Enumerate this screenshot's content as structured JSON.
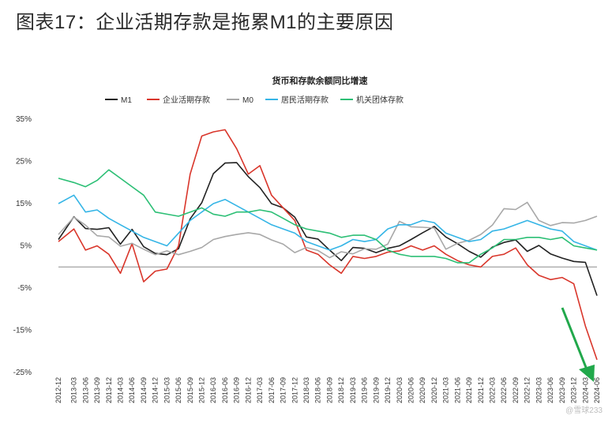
{
  "heading": "图表17：企业活期存款是拖累M1的主要原因",
  "watermark": "@雪球233",
  "chart_data": {
    "type": "line",
    "title": "货币和存款余额同比增速",
    "ylim": [
      -25,
      35
    ],
    "yticks": [
      35,
      25,
      15,
      5,
      -5,
      -15,
      -25
    ],
    "ytick_labels": [
      "35%",
      "25%",
      "15%",
      "5%",
      "-5%",
      "-15%",
      "-25%"
    ],
    "legend_position": "top",
    "xticks": [
      "2012-12",
      "2013-03",
      "2013-06",
      "2013-09",
      "2013-12",
      "2014-03",
      "2014-06",
      "2014-09",
      "2014-12",
      "2015-03",
      "2015-06",
      "2015-09",
      "2015-12",
      "2016-03",
      "2016-06",
      "2016-09",
      "2016-12",
      "2017-03",
      "2017-06",
      "2017-09",
      "2017-12",
      "2018-03",
      "2018-06",
      "2018-09",
      "2018-12",
      "2019-03",
      "2019-06",
      "2019-09",
      "2019-12",
      "2020-03",
      "2020-06",
      "2020-09",
      "2020-12",
      "2021-03",
      "2021-06",
      "2021-09",
      "2021-12",
      "2022-03",
      "2022-06",
      "2022-09",
      "2022-12",
      "2023-03",
      "2023-06",
      "2023-09",
      "2023-12",
      "2024-03",
      "2024-06"
    ],
    "x": [
      2012.917,
      2013.25,
      2013.5,
      2013.75,
      2014.0,
      2014.25,
      2014.5,
      2014.75,
      2015.0,
      2015.25,
      2015.5,
      2015.75,
      2016.0,
      2016.25,
      2016.5,
      2016.75,
      2017.0,
      2017.25,
      2017.5,
      2017.75,
      2018.0,
      2018.25,
      2018.5,
      2018.75,
      2019.0,
      2019.25,
      2019.5,
      2019.75,
      2020.0,
      2020.25,
      2020.5,
      2020.75,
      2021.0,
      2021.25,
      2021.5,
      2021.75,
      2022.0,
      2022.25,
      2022.5,
      2022.75,
      2023.0,
      2023.25,
      2023.5,
      2023.75,
      2024.0,
      2024.25,
      2024.5
    ],
    "series": [
      {
        "name": "M1",
        "color": "#222222",
        "values": [
          6.5,
          11.9,
          9.1,
          8.9,
          9.3,
          5.4,
          8.9,
          4.8,
          3.2,
          2.9,
          4.3,
          11.4,
          15.2,
          22.1,
          24.6,
          24.7,
          21.4,
          18.8,
          15.0,
          14.0,
          11.8,
          7.1,
          6.6,
          4.0,
          1.5,
          4.6,
          4.4,
          3.4,
          4.4,
          5.0,
          6.5,
          8.1,
          9.6,
          7.1,
          5.5,
          3.7,
          2.3,
          4.7,
          5.8,
          6.4,
          3.7,
          5.1,
          3.1,
          2.1,
          1.3,
          1.1,
          -6.8
        ]
      },
      {
        "name": "企业活期存款",
        "color": "#d9362b",
        "values": [
          6.0,
          9.0,
          4.0,
          5.0,
          3.0,
          -1.5,
          5.5,
          -3.5,
          -1.0,
          -0.5,
          5.0,
          22.0,
          31.0,
          32.0,
          32.5,
          28.0,
          22.0,
          24.0,
          17.0,
          14.0,
          11.0,
          4.0,
          3.0,
          0.5,
          -1.5,
          2.5,
          2.0,
          2.5,
          3.5,
          3.8,
          5.0,
          4.0,
          5.0,
          3.0,
          1.5,
          0.5,
          0.0,
          2.5,
          3.0,
          4.5,
          0.5,
          -2.0,
          -3.0,
          -2.5,
          -4.0,
          -14.0,
          -22.0
        ]
      },
      {
        "name": "M0",
        "color": "#a8a8a8",
        "values": [
          7.7,
          11.8,
          9.9,
          7.4,
          7.1,
          4.9,
          5.6,
          4.2,
          2.9,
          3.8,
          2.9,
          3.7,
          4.6,
          6.5,
          7.2,
          7.7,
          8.1,
          7.7,
          6.4,
          5.4,
          3.4,
          4.6,
          3.9,
          2.2,
          3.6,
          3.1,
          4.3,
          4.2,
          5.4,
          10.8,
          9.5,
          9.4,
          9.2,
          4.2,
          5.6,
          6.3,
          7.7,
          9.9,
          13.8,
          13.6,
          15.3,
          11.0,
          9.8,
          10.5,
          10.4,
          11.0,
          12.0
        ]
      },
      {
        "name": "居民活期存款",
        "color": "#35b5e6",
        "values": [
          15.0,
          17.0,
          13.0,
          13.5,
          11.5,
          10.0,
          8.5,
          7.0,
          6.0,
          5.0,
          8.0,
          11.0,
          13.0,
          15.0,
          16.0,
          14.5,
          13.0,
          11.5,
          10.0,
          9.0,
          8.0,
          6.0,
          5.0,
          4.0,
          5.0,
          6.5,
          6.0,
          6.5,
          9.0,
          10.0,
          10.0,
          11.0,
          10.5,
          8.0,
          7.0,
          6.0,
          6.5,
          8.5,
          9.0,
          10.0,
          11.0,
          10.0,
          9.0,
          8.5,
          6.0,
          5.0,
          4.0
        ]
      },
      {
        "name": "机关团体存款",
        "color": "#2cbf75",
        "values": [
          21.0,
          20.0,
          19.0,
          20.5,
          23.0,
          21.0,
          19.0,
          17.0,
          13.0,
          12.5,
          12.0,
          13.0,
          14.0,
          12.5,
          12.0,
          13.0,
          13.0,
          13.5,
          13.0,
          11.5,
          10.0,
          9.0,
          8.5,
          8.0,
          7.0,
          7.5,
          7.5,
          6.5,
          4.0,
          3.0,
          2.5,
          2.5,
          2.5,
          2.0,
          1.0,
          1.0,
          3.0,
          4.5,
          6.5,
          6.5,
          7.0,
          7.0,
          6.5,
          7.0,
          5.0,
          4.5,
          4.0
        ]
      }
    ]
  }
}
